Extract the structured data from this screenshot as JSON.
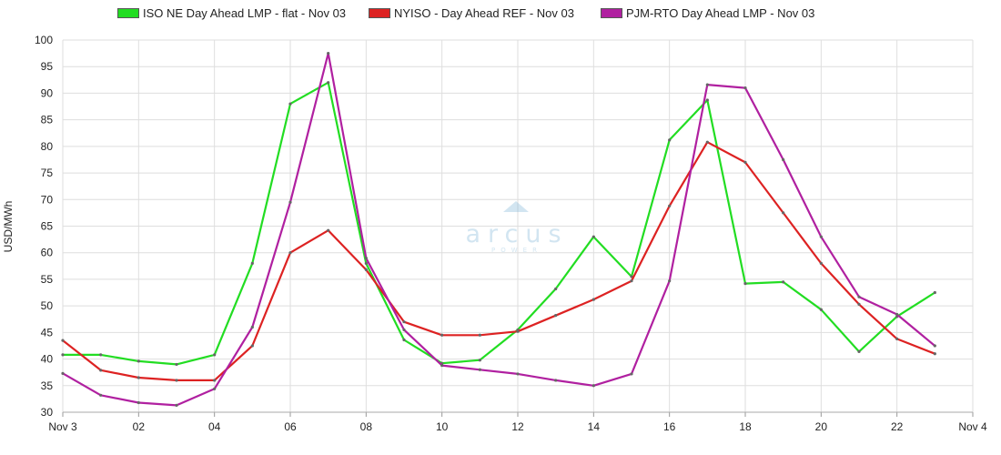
{
  "chart_data": {
    "type": "line",
    "ylabel": "USD/MWh",
    "ylim": [
      30,
      100
    ],
    "yticks": [
      30,
      35,
      40,
      45,
      50,
      55,
      60,
      65,
      70,
      75,
      80,
      85,
      90,
      95,
      100
    ],
    "xlim": [
      0,
      24
    ],
    "xticks": [
      {
        "x": 0,
        "label": "Nov 3"
      },
      {
        "x": 2,
        "label": "02"
      },
      {
        "x": 4,
        "label": "04"
      },
      {
        "x": 6,
        "label": "06"
      },
      {
        "x": 8,
        "label": "08"
      },
      {
        "x": 10,
        "label": "10"
      },
      {
        "x": 12,
        "label": "12"
      },
      {
        "x": 14,
        "label": "14"
      },
      {
        "x": 16,
        "label": "16"
      },
      {
        "x": 18,
        "label": "18"
      },
      {
        "x": 20,
        "label": "20"
      },
      {
        "x": 22,
        "label": "22"
      },
      {
        "x": 24,
        "label": "Nov 4"
      }
    ],
    "grid": true,
    "legend_position": "top",
    "x": [
      0,
      1,
      2,
      3,
      4,
      5,
      6,
      7,
      8,
      9,
      10,
      11,
      12,
      13,
      14,
      15,
      16,
      17,
      18,
      19,
      20,
      21,
      22,
      23
    ],
    "series": [
      {
        "name": "ISO NE Day Ahead LMP - flat - Nov 03",
        "color": "#22dd22",
        "values": [
          40.8,
          40.8,
          39.6,
          39.0,
          40.8,
          58.0,
          88.0,
          92.0,
          58.0,
          43.6,
          39.2,
          39.8,
          45.5,
          53.2,
          63.0,
          55.5,
          81.2,
          88.7,
          54.2,
          54.5,
          49.3,
          41.4,
          48.0,
          52.5
        ]
      },
      {
        "name": "NYISO - Day Ahead REF - Nov 03",
        "color": "#dd2222",
        "values": [
          43.5,
          37.9,
          36.5,
          36.0,
          36.0,
          42.5,
          60.0,
          64.2,
          56.8,
          47.0,
          44.5,
          44.5,
          45.2,
          48.2,
          51.2,
          54.7,
          68.8,
          80.8,
          77.0,
          67.5,
          58.0,
          50.3,
          43.8,
          41.0
        ]
      },
      {
        "name": "PJM-RTO Day Ahead LMP - Nov 03",
        "color": "#b020a0",
        "values": [
          37.3,
          33.2,
          31.8,
          31.3,
          34.4,
          46.0,
          69.5,
          97.5,
          59.0,
          45.5,
          38.8,
          38.0,
          37.2,
          36.0,
          35.0,
          37.2,
          54.7,
          91.6,
          91.0,
          77.5,
          63.0,
          51.7,
          48.4,
          42.5
        ]
      }
    ]
  },
  "watermark": {
    "text": "arcus",
    "subtext": "POWER"
  }
}
